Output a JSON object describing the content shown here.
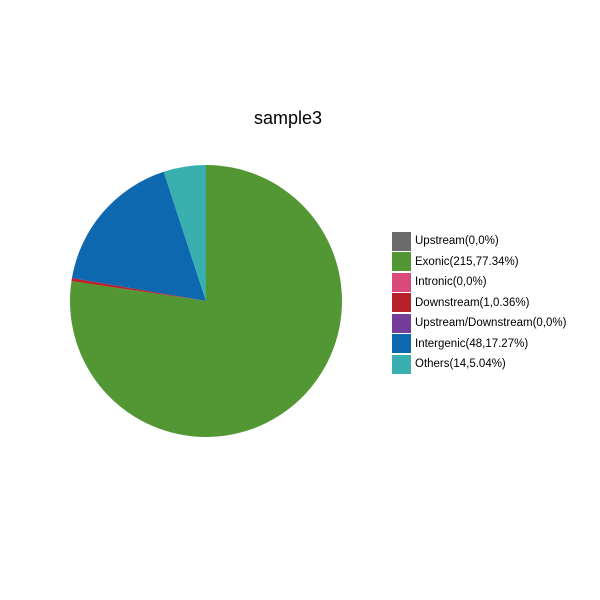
{
  "chart_data": {
    "type": "pie",
    "title": "sample3",
    "slices": [
      {
        "name": "Upstream",
        "count": 0,
        "percent": 0,
        "label": "Upstream(0,0%)",
        "color": "#6b6b6b"
      },
      {
        "name": "Exonic",
        "count": 215,
        "percent": 77.34,
        "label": "Exonic(215,77.34%)",
        "color": "#529733"
      },
      {
        "name": "Intronic",
        "count": 0,
        "percent": 0,
        "label": "Intronic(0,0%)",
        "color": "#d9497b"
      },
      {
        "name": "Downstream",
        "count": 1,
        "percent": 0.36,
        "label": "Downstream(1,0.36%)",
        "color": "#b7212b"
      },
      {
        "name": "Upstream/Downstream",
        "count": 0,
        "percent": 0,
        "label": "Upstream/Downstream(0,0%)",
        "color": "#733d99"
      },
      {
        "name": "Intergenic",
        "count": 48,
        "percent": 17.27,
        "label": "Intergenic(48,17.27%)",
        "color": "#0e68af"
      },
      {
        "name": "Others",
        "count": 14,
        "percent": 5.04,
        "label": "Others(14,5.04%)",
        "color": "#3aafb0"
      }
    ],
    "start": "12 o'clock",
    "direction": "clockwise",
    "legend_position": "right",
    "grid": false
  }
}
